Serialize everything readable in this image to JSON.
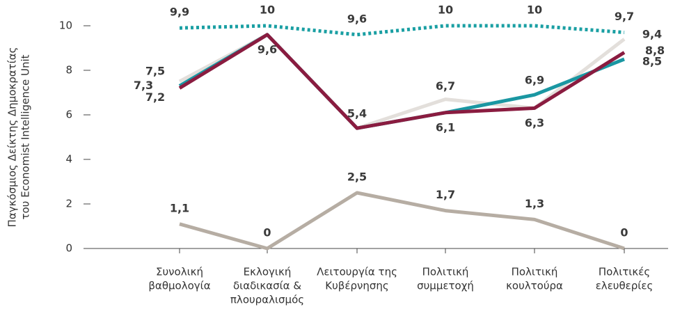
{
  "chart_data": {
    "type": "line",
    "ylabel": [
      "Παγκόσμιος Δείκτης Δημοκρατίας",
      "του Economist Intelligence Unit"
    ],
    "categories": [
      [
        "Συνολική",
        "βαθμολογία"
      ],
      [
        "Εκλογική",
        "διαδικασία &",
        "πλουραλισμός"
      ],
      [
        "Λειτουργία της",
        "Κυβέρνησης"
      ],
      [
        "Πολιτική",
        "συμμετοχή"
      ],
      [
        "Πολιτική",
        "κουλτούρα"
      ],
      [
        "Πολιτικές",
        "ελευθερίες"
      ]
    ],
    "ylim": [
      0,
      10
    ],
    "yticks": [
      0,
      2,
      4,
      6,
      8,
      10
    ],
    "series": [
      {
        "color": "#1a9fa3",
        "dashed": true,
        "values": [
          9.9,
          10,
          9.6,
          10,
          10,
          9.7
        ],
        "value_labels": [
          "9,9",
          "10",
          "9,6",
          "10",
          "10",
          "9,7"
        ]
      },
      {
        "color": "#e3dfdb",
        "values": [
          7.5,
          9.6,
          5.4,
          6.7,
          6.3,
          9.4
        ],
        "value_labels": [
          "7,5",
          null,
          null,
          "6,7",
          null,
          "9,4"
        ]
      },
      {
        "color": "#1a97a2",
        "values": [
          7.3,
          9.6,
          5.4,
          6.1,
          6.9,
          8.5
        ],
        "value_labels": [
          "7,3",
          null,
          null,
          null,
          "6,9",
          "8,5"
        ]
      },
      {
        "color": "#8a1c40",
        "values": [
          7.2,
          9.6,
          5.4,
          6.1,
          6.3,
          8.8
        ],
        "value_labels": [
          "7,2",
          "9,6",
          "5,4",
          "6,1",
          "6,3",
          "8,8"
        ]
      },
      {
        "color": "#b6ada3",
        "values": [
          1.1,
          0,
          2.5,
          1.7,
          1.3,
          0
        ],
        "value_labels": [
          "1,1",
          "0",
          "2,5",
          "1,7",
          "1,3",
          "0"
        ]
      }
    ]
  }
}
